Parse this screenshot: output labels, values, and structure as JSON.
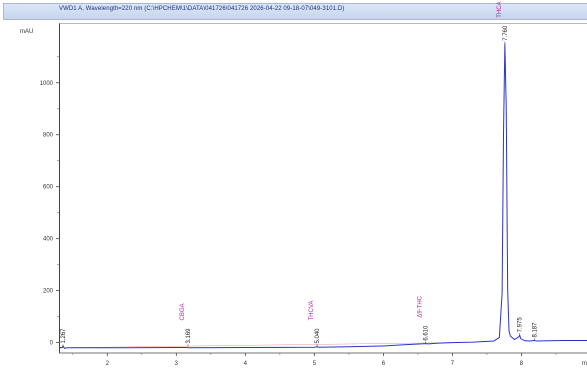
{
  "window": {
    "title": "VWD1 A, Wavelength=220 nm (C:\\HPCHEM\\1\\DATA\\041726\\041726 2026-04-22 09-18-07\\049-3101.D)"
  },
  "chart_data": {
    "type": "line",
    "title": "VWD1 A, Wavelength=220 nm (C:\\HPCHEM\\1\\DATA\\041726\\041726 2026-04-22 09-18-07\\049-3101.D)",
    "ylabel": "mAU",
    "xlabel": "min",
    "xlim": [
      1.3,
      8.95
    ],
    "ylim": [
      -40,
      1230
    ],
    "x_ticks": [
      2,
      3,
      4,
      5,
      6,
      7,
      8
    ],
    "y_ticks": [
      0,
      200,
      400,
      600,
      800,
      1000
    ],
    "grid": false,
    "series": [
      {
        "color": "#2b34c8",
        "x": [
          1.3,
          1.34,
          1.36,
          1.38,
          1.42,
          2.0,
          3.0,
          3.15,
          3.18,
          4.0,
          5.0,
          5.04,
          5.06,
          5.5,
          6.0,
          6.3,
          6.55,
          6.61,
          6.65,
          6.8,
          7.0,
          7.3,
          7.6,
          7.68,
          7.72,
          7.74,
          7.76,
          7.78,
          7.8,
          7.82,
          7.84,
          7.9,
          7.96,
          7.975,
          7.99,
          8.05,
          8.12,
          8.187,
          8.22,
          8.4,
          8.6,
          8.95
        ],
        "y": [
          -18,
          -20,
          -14,
          -22,
          -20,
          -20,
          -19,
          -19,
          -20,
          -19,
          -18,
          -16,
          -18,
          -16,
          -13,
          -8,
          -5,
          -4,
          -5,
          -2,
          0,
          2,
          6,
          20,
          190,
          800,
          1150,
          900,
          210,
          45,
          25,
          12,
          22,
          28,
          15,
          7,
          6,
          8,
          6,
          7,
          8,
          8
        ]
      }
    ],
    "peaks": [
      {
        "rt": "1.267",
        "x": 1.267,
        "compound": ""
      },
      {
        "rt": "3.169",
        "x": 3.169,
        "compound": "CBGA"
      },
      {
        "rt": "5.040",
        "x": 5.04,
        "compound": "THCVA"
      },
      {
        "rt": "6.610",
        "x": 6.61,
        "compound": "Δ9-THC"
      },
      {
        "rt": "7.760",
        "x": 7.76,
        "compound": "THCA"
      },
      {
        "rt": "7.975",
        "x": 7.975,
        "compound": ""
      },
      {
        "rt": "8.187",
        "x": 8.187,
        "compound": ""
      }
    ]
  }
}
